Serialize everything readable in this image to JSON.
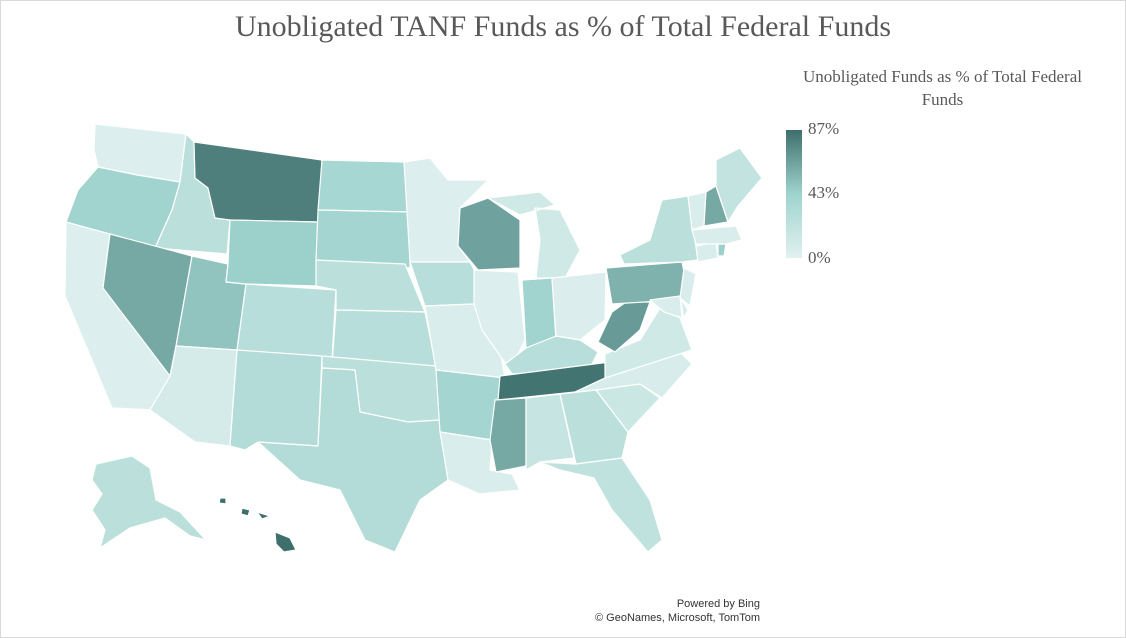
{
  "title": "Unobligated TANF Funds as % of Total Federal Funds",
  "legend": {
    "title_line1": "Unobligated Funds as % of Total Federal",
    "title_line2": "Funds",
    "max_label": "87%",
    "mid_label": "43%",
    "min_label": "0%",
    "colors": {
      "max": "#3e6f6c",
      "mid": "#9fd3ce",
      "min": "#e1f1f0"
    }
  },
  "attribution": {
    "line1": "Powered by Bing",
    "line2": "© GeoNames, Microsoft, TomTom"
  },
  "chart_data": {
    "type": "choropleth",
    "value_range": [
      0,
      87
    ],
    "unit": "%",
    "regions": [
      {
        "state": "Washington",
        "value": 3
      },
      {
        "state": "Oregon",
        "value": 42
      },
      {
        "state": "California",
        "value": 3
      },
      {
        "state": "Idaho",
        "value": 25
      },
      {
        "state": "Nevada",
        "value": 62
      },
      {
        "state": "Utah",
        "value": 50
      },
      {
        "state": "Arizona",
        "value": 8
      },
      {
        "state": "Montana",
        "value": 80
      },
      {
        "state": "Wyoming",
        "value": 45
      },
      {
        "state": "Colorado",
        "value": 28
      },
      {
        "state": "New Mexico",
        "value": 30
      },
      {
        "state": "North Dakota",
        "value": 38
      },
      {
        "state": "South Dakota",
        "value": 40
      },
      {
        "state": "Nebraska",
        "value": 25
      },
      {
        "state": "Kansas",
        "value": 28
      },
      {
        "state": "Oklahoma",
        "value": 25
      },
      {
        "state": "Texas",
        "value": 30
      },
      {
        "state": "Minnesota",
        "value": 3
      },
      {
        "state": "Iowa",
        "value": 28
      },
      {
        "state": "Missouri",
        "value": 5
      },
      {
        "state": "Arkansas",
        "value": 40
      },
      {
        "state": "Louisiana",
        "value": 5
      },
      {
        "state": "Wisconsin",
        "value": 65
      },
      {
        "state": "Illinois",
        "value": 3
      },
      {
        "state": "Michigan",
        "value": 12
      },
      {
        "state": "Indiana",
        "value": 42
      },
      {
        "state": "Ohio",
        "value": 4
      },
      {
        "state": "Kentucky",
        "value": 28
      },
      {
        "state": "Tennessee",
        "value": 85
      },
      {
        "state": "Mississippi",
        "value": 62
      },
      {
        "state": "Alabama",
        "value": 18
      },
      {
        "state": "Georgia",
        "value": 25
      },
      {
        "state": "Florida",
        "value": 22
      },
      {
        "state": "South Carolina",
        "value": 15
      },
      {
        "state": "North Carolina",
        "value": 6
      },
      {
        "state": "Virginia",
        "value": 12
      },
      {
        "state": "West Virginia",
        "value": 68
      },
      {
        "state": "Pennsylvania",
        "value": 58
      },
      {
        "state": "New York",
        "value": 25
      },
      {
        "state": "New Jersey",
        "value": 5
      },
      {
        "state": "Maryland",
        "value": 5
      },
      {
        "state": "Delaware",
        "value": 8
      },
      {
        "state": "Connecticut",
        "value": 5
      },
      {
        "state": "Rhode Island",
        "value": 45
      },
      {
        "state": "Massachusetts",
        "value": 5
      },
      {
        "state": "Vermont",
        "value": 5
      },
      {
        "state": "New Hampshire",
        "value": 62
      },
      {
        "state": "Maine",
        "value": 20
      },
      {
        "state": "Alaska",
        "value": 25
      },
      {
        "state": "Hawaii",
        "value": 87
      }
    ]
  }
}
